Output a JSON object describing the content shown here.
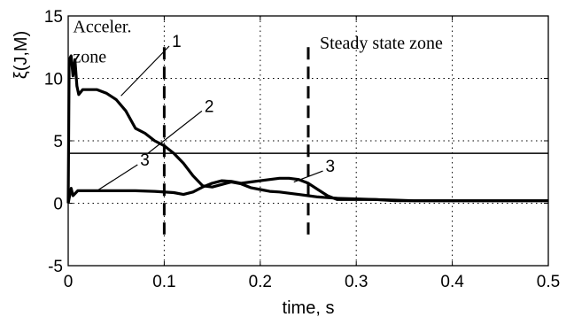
{
  "chart_data": {
    "type": "line",
    "title": "",
    "xlabel": "time, s",
    "ylabel": "ξ(J,M)",
    "xlim": [
      0,
      0.5
    ],
    "ylim": [
      -5,
      15
    ],
    "xticks": [
      0,
      0.1,
      0.2,
      0.3,
      0.4,
      0.5
    ],
    "xtick_labels": [
      "0",
      "0.1",
      "0.2",
      "0.3",
      "0.4",
      "0.5"
    ],
    "yticks": [
      -5,
      0,
      5,
      10,
      15
    ],
    "ytick_labels": [
      "-5",
      "0",
      "5",
      "10",
      "15"
    ],
    "grid": true,
    "series": [
      {
        "name": "1",
        "label_at": [
          0.108,
          12.8
        ],
        "leader_to": [
          0.055,
          8.6
        ],
        "x": [
          0,
          0.001,
          0.003,
          0.005,
          0.007,
          0.009,
          0.011,
          0.015,
          0.02,
          0.03,
          0.04,
          0.05,
          0.06,
          0.07,
          0.08,
          0.09,
          0.1,
          0.11,
          0.12,
          0.13,
          0.14,
          0.15,
          0.16,
          0.17,
          0.18,
          0.19,
          0.2,
          0.21,
          0.22,
          0.23,
          0.24,
          0.25,
          0.26,
          0.27,
          0.28,
          0.3,
          0.32,
          0.34,
          0.36,
          0.4,
          0.45,
          0.5
        ],
        "y": [
          0,
          11.5,
          11.8,
          10.2,
          11.5,
          9.4,
          8.7,
          9.1,
          9.1,
          9.1,
          8.8,
          8.3,
          7.4,
          6.0,
          5.6,
          5.0,
          4.6,
          4.0,
          3.2,
          2.2,
          1.4,
          1.3,
          1.5,
          1.7,
          1.55,
          1.25,
          1.1,
          0.95,
          0.9,
          0.8,
          0.7,
          0.6,
          0.5,
          0.45,
          0.4,
          0.35,
          0.3,
          0.25,
          0.2,
          0.2,
          0.2,
          0.2
        ]
      },
      {
        "name": "2",
        "label_at": [
          0.142,
          7.6
        ],
        "leader_to": [
          0.083,
          4.0
        ],
        "x": [
          0,
          0.5
        ],
        "y": [
          4.0,
          4.0
        ]
      },
      {
        "name": "3",
        "label_at": [
          0.075,
          3.3
        ],
        "leader_to": [
          0.03,
          1.0
        ],
        "label2_at": [
          0.268,
          2.8
        ],
        "leader2_to": [
          0.235,
          1.7
        ],
        "x": [
          0,
          0.003,
          0.005,
          0.01,
          0.02,
          0.03,
          0.05,
          0.07,
          0.09,
          0.11,
          0.12,
          0.13,
          0.14,
          0.15,
          0.16,
          0.17,
          0.18,
          0.19,
          0.2,
          0.21,
          0.22,
          0.23,
          0.24,
          0.25,
          0.26,
          0.27,
          0.28,
          0.3,
          0.32,
          0.34,
          0.4,
          0.45,
          0.5
        ],
        "y": [
          0,
          1.2,
          0.6,
          1.0,
          1.0,
          1.0,
          1.0,
          1.0,
          0.95,
          0.85,
          0.7,
          0.9,
          1.3,
          1.6,
          1.8,
          1.75,
          1.6,
          1.7,
          1.8,
          1.9,
          2.0,
          2.0,
          1.9,
          1.6,
          1.1,
          0.6,
          0.3,
          0.3,
          0.3,
          0.2,
          0.2,
          0.2,
          0.2
        ]
      }
    ],
    "vlines": [
      {
        "x": 0.1,
        "y_from": -2.5,
        "y_to": 12.5
      },
      {
        "x": 0.25,
        "y_from": -2.5,
        "y_to": 12.5
      }
    ],
    "annotations": [
      {
        "text": "Acceler.",
        "at": [
          0.005,
          14.1
        ]
      },
      {
        "text": "zone",
        "at": [
          0.005,
          11.7
        ]
      },
      {
        "text": "Steady state zone",
        "at": [
          0.262,
          12.8
        ]
      }
    ]
  }
}
